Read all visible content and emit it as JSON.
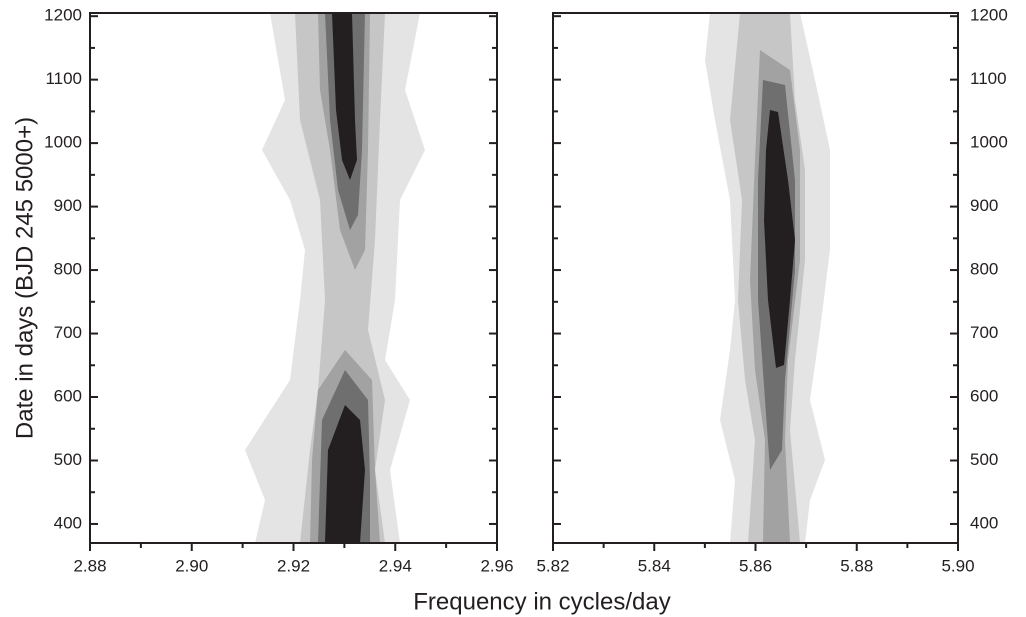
{
  "chart_data": [
    {
      "type": "contour",
      "y_label": "Date in days (BJD 245 5000+)",
      "x_label": "Frequency in cycles/day",
      "xlim": [
        2.88,
        2.96
      ],
      "xticks": [
        2.88,
        {
          "value": 2.9,
          "label": "2.90"
        },
        2.92,
        2.94,
        2.96
      ],
      "ylim": [
        370,
        1205
      ],
      "yticks": [
        400,
        500,
        600,
        700,
        800,
        900,
        1000,
        1100,
        1200
      ]
    },
    {
      "type": "contour",
      "xlim": [
        5.82,
        5.9
      ],
      "xticks": [
        5.82,
        5.84,
        5.86,
        5.88,
        {
          "value": 5.9,
          "label": "5.90"
        }
      ],
      "ylim": [
        370,
        1205
      ],
      "yticks": [
        400,
        500,
        600,
        700,
        800,
        900,
        1000,
        1100,
        1200
      ]
    }
  ]
}
